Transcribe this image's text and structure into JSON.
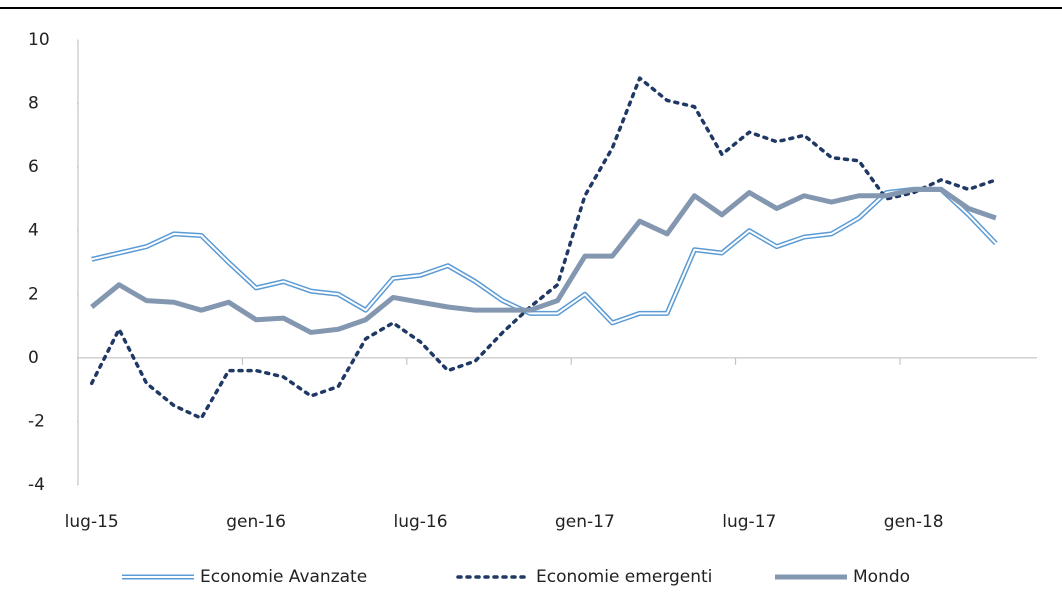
{
  "chart_data": {
    "type": "line",
    "categories": [
      "lug-15",
      null,
      null,
      null,
      null,
      null,
      "gen-16",
      null,
      null,
      null,
      null,
      null,
      "lug-16",
      null,
      null,
      null,
      null,
      null,
      "gen-17",
      null,
      null,
      null,
      null,
      null,
      "lug-17",
      null,
      null,
      null,
      null,
      null,
      "gen-18",
      null,
      null,
      null,
      null
    ],
    "series": [
      {
        "name": "Economie Avanzate",
        "color": "#5b9bd5",
        "style": "double",
        "values": [
          3.1,
          3.3,
          3.5,
          3.9,
          3.85,
          3.0,
          2.2,
          2.4,
          2.1,
          2.0,
          1.5,
          2.5,
          2.6,
          2.9,
          2.4,
          1.8,
          1.4,
          1.4,
          2.0,
          1.1,
          1.4,
          1.4,
          3.4,
          3.3,
          4.0,
          3.5,
          3.8,
          3.9,
          4.4,
          5.2,
          5.3,
          5.3,
          4.5,
          3.6,
          null
        ]
      },
      {
        "name": "Economie emergenti",
        "color": "#1f3864",
        "style": "dotted",
        "values": [
          -0.8,
          0.9,
          -0.8,
          -1.5,
          -1.9,
          -0.4,
          -0.4,
          -0.6,
          -1.2,
          -0.9,
          0.6,
          1.1,
          0.5,
          -0.4,
          -0.1,
          0.8,
          1.6,
          2.3,
          5.1,
          6.6,
          8.8,
          8.1,
          7.9,
          6.4,
          7.1,
          6.8,
          7.0,
          6.3,
          6.2,
          5.0,
          5.2,
          5.6,
          5.3,
          5.6,
          null
        ]
      },
      {
        "name": "Mondo",
        "color": "#8497b0",
        "style": "thick",
        "values": [
          1.6,
          2.3,
          1.8,
          1.75,
          1.5,
          1.75,
          1.2,
          1.25,
          0.8,
          0.9,
          1.2,
          1.9,
          1.75,
          1.6,
          1.5,
          1.5,
          1.5,
          1.8,
          3.2,
          3.2,
          4.3,
          3.9,
          5.1,
          4.5,
          5.2,
          4.7,
          5.1,
          4.9,
          5.1,
          5.1,
          5.3,
          5.3,
          4.7,
          4.4,
          null
        ]
      }
    ],
    "ylim": [
      -4,
      10
    ],
    "yticks": [
      -4,
      -2,
      0,
      2,
      4,
      6,
      8,
      10
    ],
    "legend": "bottom"
  }
}
